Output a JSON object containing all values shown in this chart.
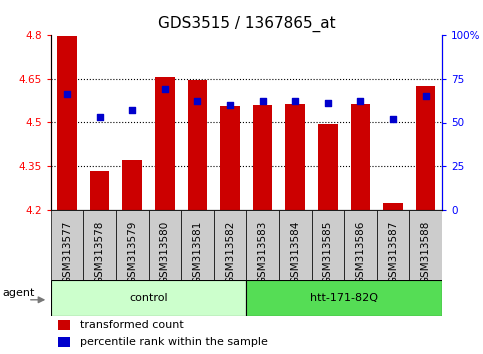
{
  "title": "GDS3515 / 1367865_at",
  "samples": [
    "GSM313577",
    "GSM313578",
    "GSM313579",
    "GSM313580",
    "GSM313581",
    "GSM313582",
    "GSM313583",
    "GSM313584",
    "GSM313585",
    "GSM313586",
    "GSM313587",
    "GSM313588"
  ],
  "bar_values": [
    4.795,
    4.335,
    4.37,
    4.655,
    4.645,
    4.555,
    4.56,
    4.565,
    4.495,
    4.565,
    4.225,
    4.625
  ],
  "percentile_values": [
    66,
    53,
    57,
    69,
    62,
    60,
    62,
    62,
    61,
    62,
    52,
    65
  ],
  "y_min": 4.2,
  "y_max": 4.8,
  "y_ticks": [
    4.2,
    4.35,
    4.5,
    4.65,
    4.8
  ],
  "y_tick_labels": [
    "4.2",
    "4.35",
    "4.5",
    "4.65",
    "4.8"
  ],
  "y2_ticks": [
    0,
    25,
    50,
    75,
    100
  ],
  "y2_tick_labels": [
    "0",
    "25",
    "50",
    "75",
    "100%"
  ],
  "bar_color": "#cc0000",
  "percentile_color": "#0000cc",
  "bar_bottom": 4.2,
  "agent_label": "agent",
  "group1_label": "control",
  "group2_label": "htt-171-82Q",
  "group1_color": "#ccffcc",
  "group2_color": "#55dd55",
  "tick_bg_color": "#cccccc",
  "legend_bar_label": "transformed count",
  "legend_pct_label": "percentile rank within the sample",
  "title_fontsize": 11,
  "tick_fontsize": 7.5,
  "label_fontsize": 8,
  "legend_fontsize": 8,
  "grid_lines": [
    4.35,
    4.5,
    4.65
  ],
  "n_samples": 12,
  "n_group1": 6
}
